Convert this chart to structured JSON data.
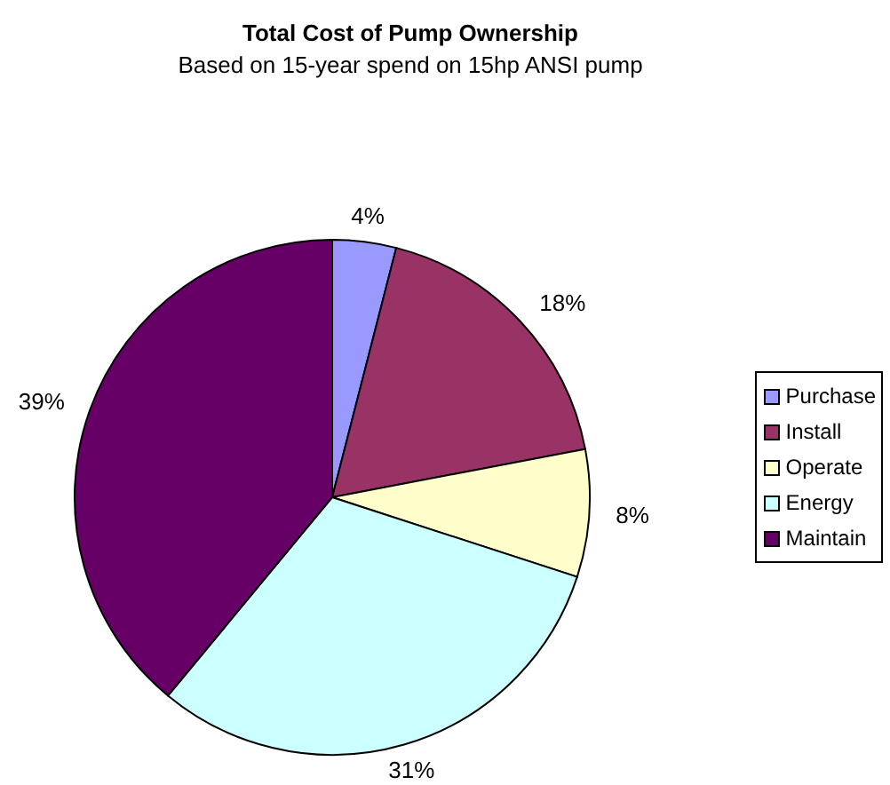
{
  "chart_data": {
    "type": "pie",
    "title": "Total Cost of Pump Ownership",
    "subtitle": "Based on 15-year spend on 15hp ANSI pump",
    "categories": [
      "Purchase",
      "Install",
      "Operate",
      "Energy",
      "Maintain"
    ],
    "values": [
      4,
      18,
      8,
      31,
      39
    ],
    "colors": [
      "#9999ff",
      "#993366",
      "#ffffcc",
      "#ccffff",
      "#660066"
    ],
    "value_labels": [
      "4%",
      "18%",
      "8%",
      "31%",
      "39%"
    ],
    "legend": "right"
  }
}
